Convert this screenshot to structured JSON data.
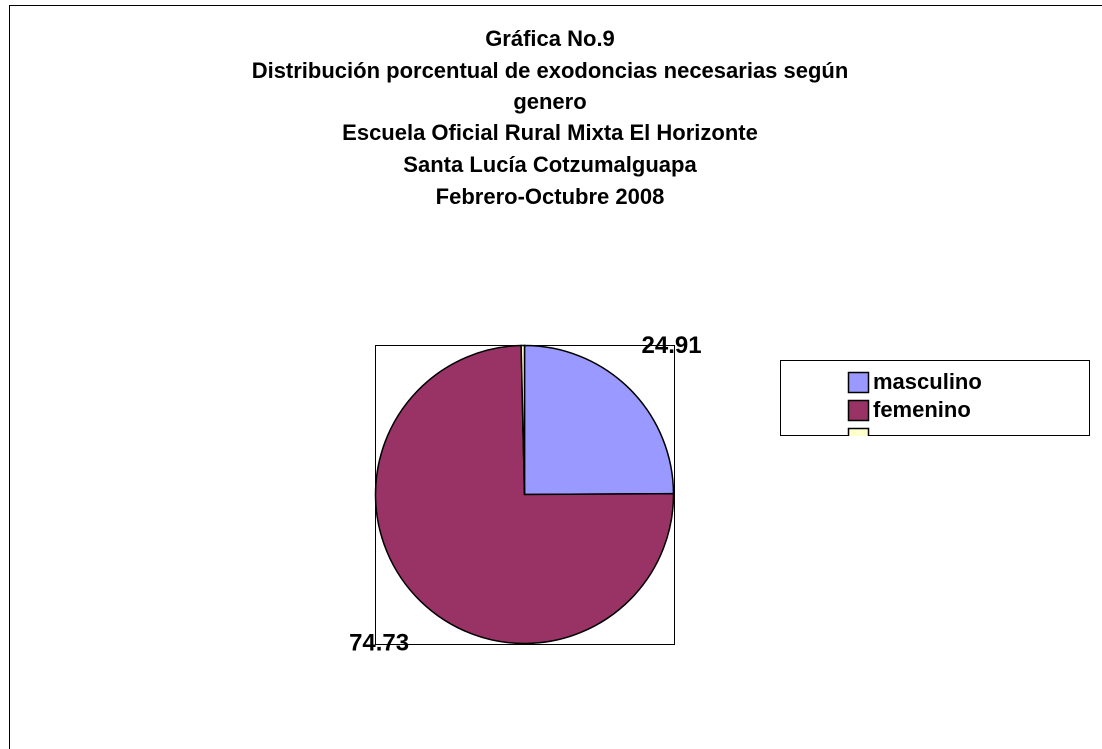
{
  "chart_data": {
    "type": "pie",
    "title": [
      "Gráfica No.9",
      "Distribución porcentual de exodoncias necesarias según",
      "genero",
      "Escuela Oficial Rural Mixta El Horizonte",
      "Santa Lucía Cotzumalguapa",
      "Febrero-Octubre 2008"
    ],
    "categories": [
      "masculino",
      "femenino",
      null
    ],
    "values": [
      24.91,
      74.73,
      0.36
    ],
    "colors": [
      "#9999ff",
      "#993366",
      "#ffffcc"
    ],
    "legend": "right"
  }
}
